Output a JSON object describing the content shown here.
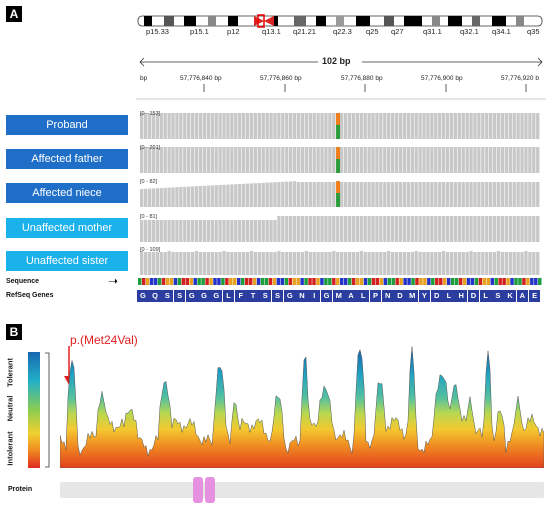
{
  "panels": {
    "a": "A",
    "b": "B"
  },
  "panel_a": {
    "cytobands": [
      "p15.33",
      "p15.1",
      "p12",
      "q13.1",
      "q21.21",
      "q22.3",
      "q25",
      "q27",
      "q31.1",
      "q32.1",
      "q34.1",
      "q35"
    ],
    "span_label": "102 bp",
    "bp_start_label": "bp",
    "bp_ticks": [
      "57,776,840 bp",
      "57,776,860 bp",
      "57,776,880 bp",
      "57,776,900 bp",
      "57,776,920 b"
    ],
    "tracks": [
      {
        "label": "Proband",
        "range": "[0 - 153]",
        "affected": true,
        "variant": true
      },
      {
        "label": "Affected father",
        "range": "[0 - 201]",
        "affected": true,
        "variant": true
      },
      {
        "label": "Affected niece",
        "range": "[0 - 82]",
        "affected": true,
        "variant": true
      },
      {
        "label": "Unaffected mother",
        "range": "[0 - 81]",
        "affected": false,
        "variant": false
      },
      {
        "label": "Unaffected sister",
        "range": "[0 - 109]",
        "affected": false,
        "variant": false
      }
    ],
    "sequence_label": "Sequence",
    "refseq_label": "RefSeq Genes",
    "amino_acids": [
      "G",
      "Q",
      "S",
      "S",
      "G",
      "G",
      "G",
      "L",
      "F",
      "T",
      "S",
      "S",
      "G",
      "N",
      "I",
      "G",
      "M",
      "A",
      "L",
      "P",
      "N",
      "D",
      "M",
      "Y",
      "D",
      "L",
      "H",
      "D",
      "L",
      "S",
      "K",
      "A",
      "E"
    ],
    "colors": {
      "affected": "#1f6ec8",
      "unaffected": "#1bb1ea",
      "coverage": "#c8c8c8",
      "variant_top": "#f07d1a",
      "variant_bottom": "#2a9d3a",
      "aa_bg": "#2b3ea0"
    }
  },
  "panel_b": {
    "variant_label": "p.(Met24Val)",
    "scale": {
      "top": "Tolerant",
      "middle": "Neutral",
      "bottom": "Intolerant"
    },
    "protein_label": "Protein"
  }
}
